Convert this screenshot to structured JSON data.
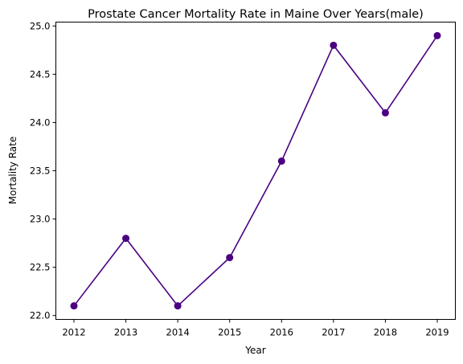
{
  "chart_data": {
    "type": "line",
    "title": "Prostate Cancer Mortality Rate in Maine Over Years(male)",
    "xlabel": "Year",
    "ylabel": "Mortality Rate",
    "x": [
      2012,
      2013,
      2014,
      2015,
      2016,
      2017,
      2018,
      2019
    ],
    "values": [
      22.1,
      22.8,
      22.1,
      22.6,
      23.6,
      24.8,
      24.1,
      24.9
    ],
    "xticks": [
      "2012",
      "2013",
      "2014",
      "2015",
      "2016",
      "2017",
      "2018",
      "2019"
    ],
    "yticks": [
      "22.0",
      "22.5",
      "23.0",
      "23.5",
      "24.0",
      "24.5",
      "25.0"
    ],
    "ylim": [
      21.96,
      25.04
    ],
    "grid": false,
    "color": "#4b0082",
    "marker": "circle"
  }
}
